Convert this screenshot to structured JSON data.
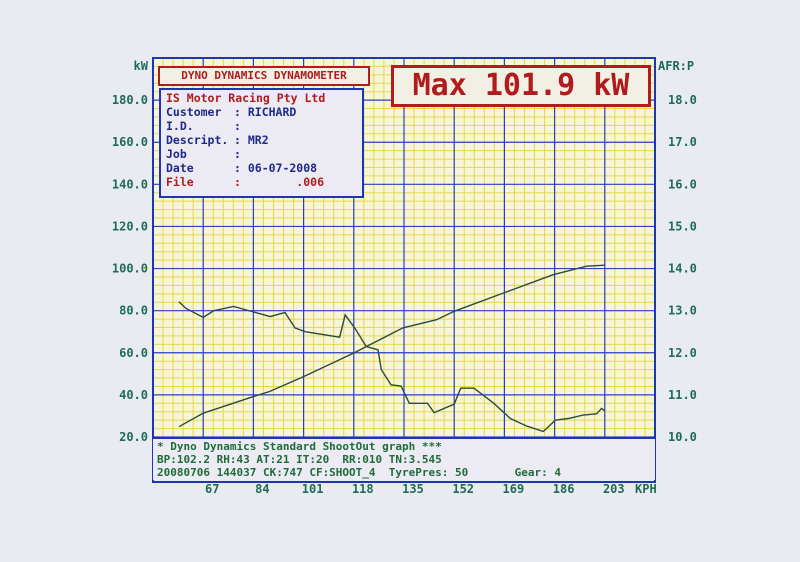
{
  "header": {
    "title": "DYNO DYNAMICS DYNAMOMETER",
    "max_label": "Max 101.9 kW"
  },
  "info": {
    "company": "IS Motor Racing Pty Ltd",
    "fields": [
      {
        "key": "Customer",
        "value": ": RICHARD"
      },
      {
        "key": "I.D.",
        "value": ":"
      },
      {
        "key": "Descript.",
        "value": ": MR2"
      },
      {
        "key": "Job",
        "value": ":"
      },
      {
        "key": "Date",
        "value": ": 06-07-2008"
      },
      {
        "key": "File",
        "value": ":        .006"
      }
    ]
  },
  "footer": {
    "line1": "* Dyno Dynamics Standard ShootOut graph ***",
    "line2": "BP:102.2 RH:43 AT:21 IT:20  RR:010 TN:3.545",
    "line3": "20080706 144037 CK:747 CF:SHOOT_4  TyrePres: 50       Gear: 4"
  },
  "colors": {
    "curve": "#2b4a42",
    "major_grid": "#2a3fd0",
    "minor_grid": "#e6d84a",
    "plot_bg": "#f7f5d8",
    "axis_text": "#1f6b5a",
    "accent": "#b01c1c"
  },
  "chart_data": {
    "type": "line",
    "xlabel": "KPH",
    "ylabel": "kW",
    "y2label": "AFR:P",
    "xlim": [
      50,
      220
    ],
    "ylim": [
      20,
      200
    ],
    "y2lim": [
      10,
      19
    ],
    "xticks": [
      "67",
      "84",
      "101",
      "118",
      "135",
      "152",
      "169",
      "186",
      "203"
    ],
    "yticks": [
      "20.0",
      "40.0",
      "60.0",
      "80.0",
      "100.0",
      "120.0",
      "140.0",
      "160.0",
      "180.0"
    ],
    "y2ticks": [
      "10.0",
      "11.0",
      "12.0",
      "13.0",
      "14.0",
      "15.0",
      "16.0",
      "17.0",
      "18.0"
    ],
    "grid": true,
    "series": [
      {
        "axis": "left",
        "x": [
          58.8,
          67,
          84,
          89.5,
          101,
          118,
          134.6,
          146,
          152,
          168.7,
          185.5,
          196.8,
          203
        ],
        "y": [
          24.9,
          31.3,
          39.2,
          41.6,
          48.7,
          59.9,
          71.8,
          75.7,
          79.7,
          88.4,
          97.1,
          101.1,
          101.6
        ]
      },
      {
        "axis": "right",
        "x": [
          58.8,
          61,
          67,
          70.6,
          77.3,
          83.5,
          89.7,
          94.7,
          98.1,
          101.5,
          113.2,
          115.1,
          118.3,
          122.2,
          126.2,
          127.3,
          130.6,
          134,
          136.8,
          143,
          145.2,
          152,
          154.2,
          158.7,
          165.4,
          171,
          176.6,
          182.2,
          186.2,
          190.6,
          195.7,
          200.2,
          201.9,
          203
        ],
        "y": [
          13.21,
          13.06,
          12.84,
          13.0,
          13.1,
          12.98,
          12.86,
          12.96,
          12.59,
          12.5,
          12.37,
          12.9,
          12.59,
          12.15,
          12.07,
          11.6,
          11.24,
          11.21,
          10.8,
          10.8,
          10.58,
          10.78,
          11.16,
          11.16,
          10.8,
          10.44,
          10.26,
          10.13,
          10.4,
          10.44,
          10.52,
          10.55,
          10.68,
          10.62
        ]
      }
    ]
  }
}
